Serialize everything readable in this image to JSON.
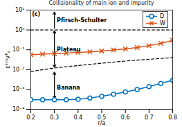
{
  "chart_data": {
    "type": "line",
    "title": "Collisionality of main ion and impurity",
    "x_label": "r/a",
    "y_label": "ε³ᐟ²ν*ₐ",
    "log": "y",
    "grid": false,
    "legend": "top-right",
    "xlim": [
      0.2,
      0.8
    ],
    "xticks": [
      0.2,
      0.3,
      0.4,
      0.5,
      0.6,
      0.7,
      0.8
    ],
    "ylim": [
      0.0001,
      10
    ],
    "yticks": [
      {
        "value": 0.0001,
        "label": "10⁻⁴"
      },
      {
        "value": 0.001,
        "label": "10⁻³"
      },
      {
        "value": 0.01,
        "label": "10⁻²"
      },
      {
        "value": 0.1,
        "label": "10⁻¹"
      },
      {
        "value": 1,
        "label": "10⁰"
      },
      {
        "value": 10,
        "label": "10¹"
      }
    ],
    "x": [
      0.2,
      0.25,
      0.3,
      0.35,
      0.4,
      0.45,
      0.5,
      0.55,
      0.6,
      0.65,
      0.7,
      0.75,
      0.8
    ],
    "series": [
      {
        "name": "D",
        "color": "#0072BD",
        "marker": "circle",
        "line_style": "solid",
        "values": [
          0.0003,
          0.0003,
          0.0003,
          0.0003,
          0.00032,
          0.00037,
          0.00045,
          0.00058,
          0.00075,
          0.001,
          0.0014,
          0.002,
          0.0029
        ]
      },
      {
        "name": "W",
        "color": "#D95319",
        "marker": "x",
        "line_style": "solid",
        "values": [
          0.056,
          0.06,
          0.064,
          0.068,
          0.073,
          0.079,
          0.087,
          0.097,
          0.11,
          0.13,
          0.16,
          0.21,
          0.3
        ]
      }
    ],
    "reference_lines": [
      {
        "x": [
          0.2,
          0.8
        ],
        "values": [
          1,
          1
        ],
        "color": "#000000",
        "line_style": "dashed"
      },
      {
        "x": [
          0.2,
          0.3,
          0.4,
          0.5,
          0.6,
          0.7,
          0.8
        ],
        "values": [
          0.008,
          0.012,
          0.016,
          0.021,
          0.027,
          0.033,
          0.04
        ],
        "color": "#000000",
        "line_style": "dashed"
      }
    ],
    "arrows": [
      {
        "x": 0.3,
        "y1": 1.2,
        "y2": 8
      },
      {
        "x": 0.3,
        "y1": 0.1,
        "y2": 0.9
      },
      {
        "x": 0.3,
        "y1": 0.1,
        "y2": 0.013
      },
      {
        "x": 0.3,
        "y1": 0.0015,
        "y2": 0.0075
      },
      {
        "x": 0.3,
        "y1": 0.0015,
        "y2": 0.00035
      }
    ],
    "annotations": [
      {
        "text": "(c)",
        "x": 0.205,
        "y": 6
      },
      {
        "text": "Pfirsch-Schulter",
        "x": 0.31,
        "y": 3
      },
      {
        "text": "Plateau",
        "x": 0.31,
        "y": 0.1
      },
      {
        "text": "Banana",
        "x": 0.31,
        "y": 0.0012
      }
    ]
  }
}
